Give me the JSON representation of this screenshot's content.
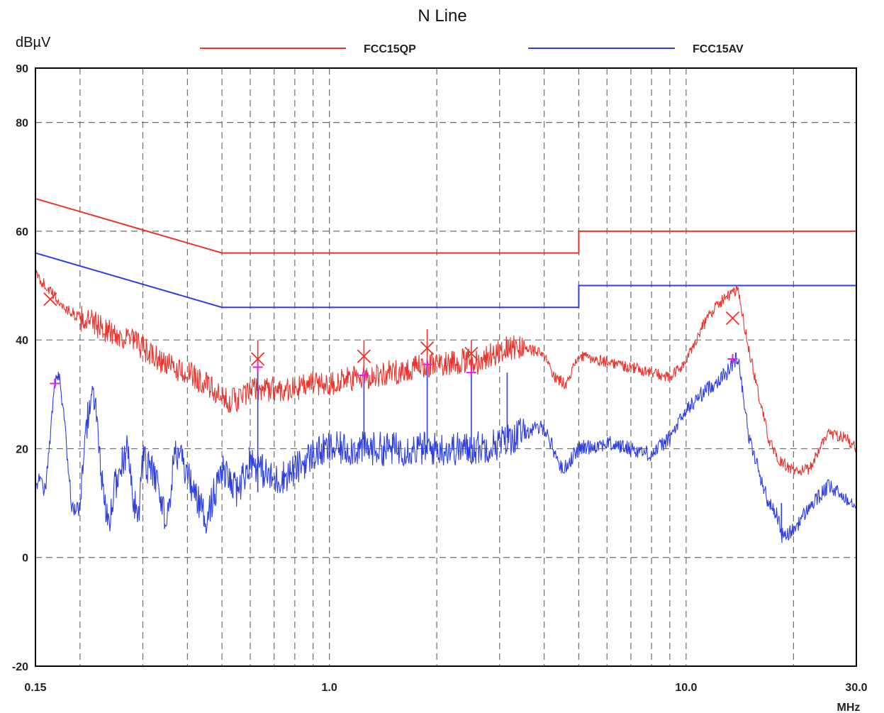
{
  "chart_data": {
    "type": "line",
    "title": "N Line",
    "ylabel": "dBµV",
    "xlabel": "MHz",
    "x_scale": "log",
    "xlim": [
      0.15,
      30.0
    ],
    "ylim": [
      -20,
      90
    ],
    "grid": true,
    "x_tick_labels": [
      {
        "value": 0.15,
        "label": "0.15"
      },
      {
        "value": 1.0,
        "label": "1.0"
      },
      {
        "value": 10.0,
        "label": "10.0"
      },
      {
        "value": 30.0,
        "label": "30.0"
      }
    ],
    "x_minor_ticks": [
      0.2,
      0.3,
      0.4,
      0.5,
      0.6,
      0.7,
      0.8,
      0.9,
      2,
      3,
      4,
      5,
      6,
      7,
      8,
      9,
      20
    ],
    "y_ticks": [
      -20,
      0,
      20,
      40,
      60,
      80,
      90
    ],
    "legend": [
      {
        "name": "FCC15QP",
        "color": "#e8352e"
      },
      {
        "name": "FCC15AV",
        "color": "#2e3fe0"
      }
    ],
    "series": [
      {
        "name": "FCC15QP",
        "kind": "limit",
        "color": "#e8352e",
        "x": [
          0.15,
          0.5,
          5.0,
          5.0,
          30.0
        ],
        "y": [
          66,
          56,
          56,
          60,
          60
        ]
      },
      {
        "name": "FCC15AV",
        "kind": "limit",
        "color": "#2e3fe0",
        "x": [
          0.15,
          0.5,
          5.0,
          5.0,
          30.0
        ],
        "y": [
          56,
          46,
          46,
          50,
          50
        ]
      },
      {
        "name": "QP trace",
        "kind": "measured",
        "color": "#e8352e",
        "x": [
          0.15,
          0.16,
          0.18,
          0.2,
          0.22,
          0.25,
          0.28,
          0.32,
          0.36,
          0.4,
          0.45,
          0.5,
          0.55,
          0.62,
          0.65,
          0.7,
          0.8,
          0.9,
          1.0,
          1.2,
          1.5,
          1.8,
          2.2,
          2.6,
          3.0,
          3.5,
          4.0,
          4.3,
          4.6,
          5.0,
          6.0,
          7.0,
          8.0,
          9.0,
          10.0,
          11.0,
          12.0,
          13.0,
          14.0,
          15.0,
          17.0,
          18.0,
          20.0,
          22.0,
          25.0,
          28.0,
          30.0
        ],
        "y": [
          52,
          50,
          46,
          44,
          43,
          41,
          40,
          37,
          35,
          34,
          32,
          29,
          29,
          31,
          31,
          31,
          31,
          32,
          32,
          33,
          34,
          35,
          36,
          36,
          38,
          39,
          37,
          33,
          32,
          37,
          36,
          35,
          34,
          33,
          36,
          42,
          46,
          48,
          49,
          38,
          22,
          18,
          16,
          16,
          23,
          22,
          20
        ]
      },
      {
        "name": "AV trace",
        "kind": "measured",
        "color": "#2e3fe0",
        "x": [
          0.15,
          0.155,
          0.16,
          0.17,
          0.175,
          0.18,
          0.19,
          0.2,
          0.21,
          0.22,
          0.23,
          0.24,
          0.25,
          0.27,
          0.29,
          0.3,
          0.33,
          0.35,
          0.37,
          0.4,
          0.45,
          0.5,
          0.55,
          0.6,
          0.7,
          0.8,
          0.9,
          1.0,
          1.2,
          1.5,
          1.8,
          2.0,
          2.5,
          3.0,
          3.5,
          4.0,
          4.3,
          4.5,
          5.0,
          6.0,
          7.0,
          8.0,
          9.0,
          10.0,
          11.0,
          12.0,
          13.0,
          14.0,
          15.0,
          17.0,
          18.0,
          18.5,
          19.0,
          20.0,
          22.0,
          25.0,
          28.0,
          30.0
        ],
        "y": [
          14,
          14,
          12,
          32,
          33,
          26,
          9,
          9,
          26,
          30,
          14,
          5,
          13,
          20,
          6,
          18,
          14,
          6,
          20,
          15,
          7,
          16,
          12,
          18,
          14,
          16,
          19,
          20,
          20,
          20,
          20,
          20,
          20,
          21,
          23,
          24,
          19,
          16,
          20,
          21,
          20,
          19,
          22,
          27,
          30,
          32,
          34,
          37,
          22,
          10,
          8,
          4,
          4,
          5,
          9,
          13,
          11,
          10
        ]
      }
    ],
    "markers": [
      {
        "type": "x",
        "color": "#e8352e",
        "x": 0.165,
        "y": 47.5
      },
      {
        "type": "x",
        "color": "#e8352e",
        "x": 0.63,
        "y": 36.5
      },
      {
        "type": "x",
        "color": "#e8352e",
        "x": 1.25,
        "y": 37
      },
      {
        "type": "x",
        "color": "#e8352e",
        "x": 1.88,
        "y": 38.5
      },
      {
        "type": "x",
        "color": "#e8352e",
        "x": 2.5,
        "y": 37.5
      },
      {
        "type": "x",
        "color": "#e8352e",
        "x": 13.5,
        "y": 44
      },
      {
        "type": "plus",
        "color": "#e020e0",
        "x": 0.17,
        "y": 32
      },
      {
        "type": "plus",
        "color": "#e020e0",
        "x": 0.63,
        "y": 35
      },
      {
        "type": "plus",
        "color": "#e020e0",
        "x": 1.25,
        "y": 33.5
      },
      {
        "type": "plus",
        "color": "#e020e0",
        "x": 1.88,
        "y": 35.5
      },
      {
        "type": "plus",
        "color": "#e020e0",
        "x": 2.5,
        "y": 34
      },
      {
        "type": "plus",
        "color": "#e020e0",
        "x": 13.5,
        "y": 36.5
      }
    ],
    "spikes": [
      {
        "color": "#e8352e",
        "x": 0.63,
        "y_from": 33,
        "y_to": 40
      },
      {
        "color": "#e8352e",
        "x": 1.25,
        "y_from": 34,
        "y_to": 40
      },
      {
        "color": "#e8352e",
        "x": 1.88,
        "y_from": 35,
        "y_to": 42
      },
      {
        "color": "#e8352e",
        "x": 2.5,
        "y_from": 35,
        "y_to": 40
      },
      {
        "color": "#e8352e",
        "x": 3.15,
        "y_from": 37,
        "y_to": 40
      },
      {
        "color": "#2e3fe0",
        "x": 0.63,
        "y_from": 12,
        "y_to": 35
      },
      {
        "color": "#2e3fe0",
        "x": 1.25,
        "y_from": 20,
        "y_to": 33
      },
      {
        "color": "#2e3fe0",
        "x": 1.88,
        "y_from": 19,
        "y_to": 36
      },
      {
        "color": "#2e3fe0",
        "x": 2.5,
        "y_from": 20,
        "y_to": 34
      },
      {
        "color": "#2e3fe0",
        "x": 3.15,
        "y_from": 22,
        "y_to": 34
      },
      {
        "color": "#2e3fe0",
        "x": 18.5,
        "y_from": 4,
        "y_to": 10
      }
    ]
  }
}
